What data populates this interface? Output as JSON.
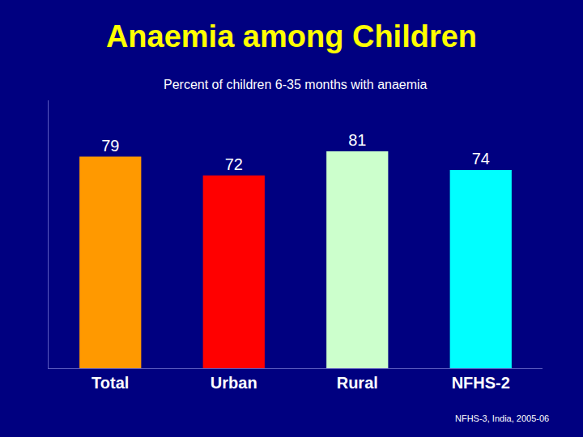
{
  "chart_data": {
    "type": "bar",
    "title": "Anaemia among Children",
    "subtitle": "Percent of children 6-35 months with anaemia",
    "categories": [
      "Total",
      "Urban",
      "Rural",
      "NFHS-2"
    ],
    "values": [
      79,
      72,
      81,
      74
    ],
    "colors": [
      "#ff9900",
      "#ff0000",
      "#ccffcc",
      "#00ffff"
    ],
    "ylim": [
      0,
      100
    ],
    "data_labels": true,
    "tick_labels": "x",
    "grid": false,
    "annotations": [
      "NFHS-3, India, 2005-06"
    ]
  }
}
